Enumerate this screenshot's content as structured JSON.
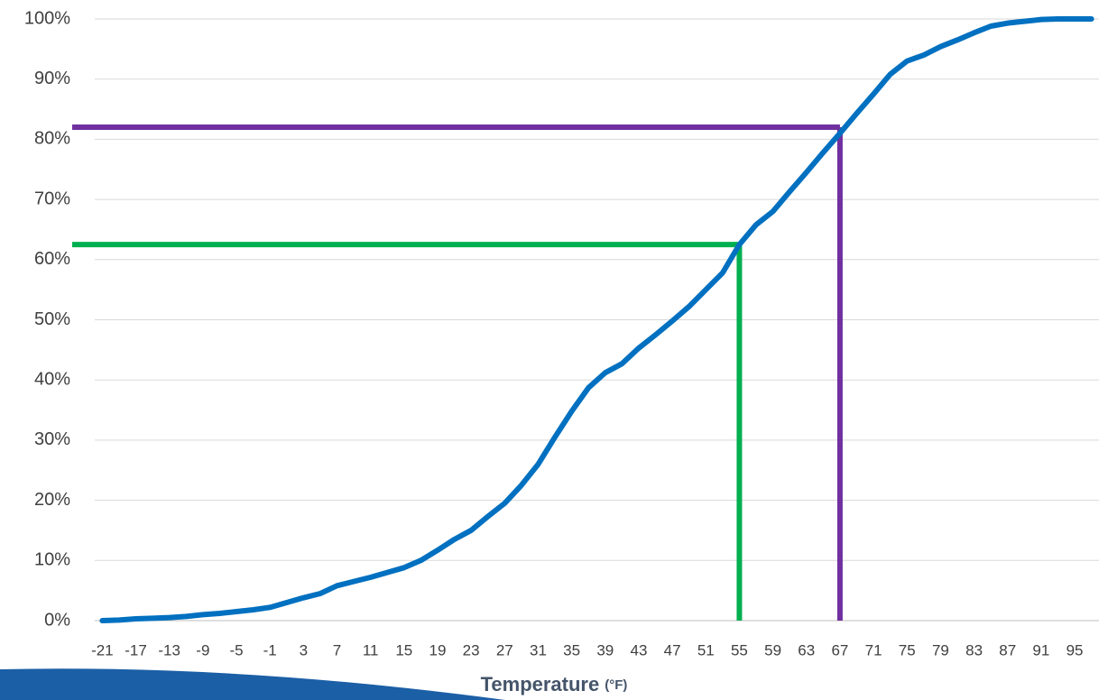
{
  "chart_data": {
    "type": "line",
    "xlabel": "Temperature",
    "xlabel_unit": "(°F)",
    "x": [
      -21,
      -19,
      -17,
      -15,
      -13,
      -11,
      -9,
      -7,
      -5,
      -3,
      -1,
      1,
      3,
      5,
      7,
      9,
      11,
      13,
      15,
      17,
      19,
      21,
      23,
      25,
      27,
      29,
      31,
      33,
      35,
      37,
      39,
      41,
      43,
      45,
      47,
      49,
      51,
      53,
      55,
      57,
      59,
      61,
      63,
      65,
      67,
      69,
      71,
      73,
      75,
      77,
      79,
      81,
      83,
      85,
      87,
      89,
      91,
      93,
      95,
      97
    ],
    "values": [
      0,
      0.1,
      0.3,
      0.4,
      0.5,
      0.7,
      1,
      1.2,
      1.5,
      1.8,
      2.2,
      3,
      3.8,
      4.5,
      5.8,
      6.5,
      7.2,
      8,
      8.8,
      10,
      11.7,
      13.5,
      15,
      17.3,
      19.5,
      22.5,
      26,
      30.5,
      34.8,
      38.7,
      41.2,
      42.7,
      45.3,
      47.5,
      49.8,
      52.2,
      55,
      57.8,
      62.5,
      65.8,
      68,
      71.3,
      74.5,
      77.8,
      81,
      84.3,
      87.5,
      90.8,
      93,
      94,
      95.4,
      96.5,
      97.7,
      98.8,
      99.3,
      99.6,
      99.9,
      100,
      100,
      100
    ],
    "color": "#0070c0",
    "reference_lines": [
      {
        "x": 55,
        "y": 62.5,
        "color": "#00b050"
      },
      {
        "x": 67,
        "y": 82,
        "color": "#7030a0"
      }
    ],
    "xlim": [
      -21.9,
      97.9
    ],
    "xticks": [
      -21,
      -17,
      -13,
      -9,
      -5,
      -1,
      3,
      7,
      11,
      15,
      19,
      23,
      27,
      31,
      35,
      39,
      43,
      47,
      51,
      55,
      59,
      63,
      67,
      71,
      75,
      79,
      83,
      87,
      91,
      95
    ],
    "ylim": [
      0,
      100
    ],
    "yticks": [
      {
        "value": 0,
        "label": "0%"
      },
      {
        "value": 10,
        "label": "10%"
      },
      {
        "value": 20,
        "label": "20%"
      },
      {
        "value": 30,
        "label": "30%"
      },
      {
        "value": 40,
        "label": "40%"
      },
      {
        "value": 50,
        "label": "50%"
      },
      {
        "value": 60,
        "label": "60%"
      },
      {
        "value": 70,
        "label": "70%"
      },
      {
        "value": 80,
        "label": "80%"
      },
      {
        "value": 90,
        "label": "90%"
      },
      {
        "value": 100,
        "label": "100%"
      }
    ],
    "grid": true
  }
}
